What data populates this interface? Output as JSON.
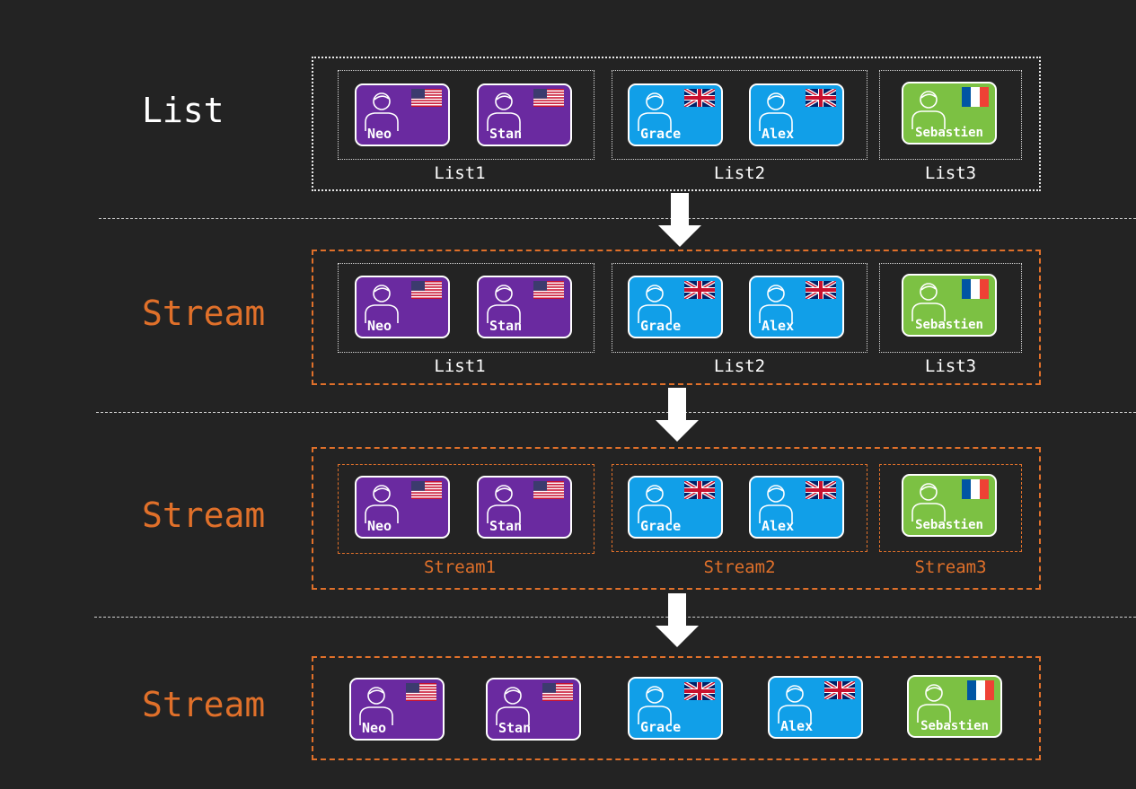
{
  "colors": {
    "background": "#232323",
    "white_text": "#ffffff",
    "orange": "#e0702a",
    "purple": "#6a2aa0",
    "blue": "#119fe8",
    "green": "#7cc143"
  },
  "rows": [
    {
      "label": "List",
      "groups": [
        {
          "label": "List1",
          "people": [
            {
              "name": "Neo",
              "country": "US",
              "color": "purple"
            },
            {
              "name": "Stan",
              "country": "US",
              "color": "purple"
            }
          ]
        },
        {
          "label": "List2",
          "people": [
            {
              "name": "Grace",
              "country": "UK",
              "color": "blue"
            },
            {
              "name": "Alex",
              "country": "UK",
              "color": "blue"
            }
          ]
        },
        {
          "label": "List3",
          "people": [
            {
              "name": "Sebastien",
              "country": "FR",
              "color": "green"
            }
          ]
        }
      ]
    },
    {
      "label": "Stream",
      "groups": [
        {
          "label": "List1",
          "people": [
            {
              "name": "Neo",
              "country": "US",
              "color": "purple"
            },
            {
              "name": "Stan",
              "country": "US",
              "color": "purple"
            }
          ]
        },
        {
          "label": "List2",
          "people": [
            {
              "name": "Grace",
              "country": "UK",
              "color": "blue"
            },
            {
              "name": "Alex",
              "country": "UK",
              "color": "blue"
            }
          ]
        },
        {
          "label": "List3",
          "people": [
            {
              "name": "Sebastien",
              "country": "FR",
              "color": "green"
            }
          ]
        }
      ]
    },
    {
      "label": "Stream",
      "groups": [
        {
          "label": "Stream1",
          "people": [
            {
              "name": "Neo",
              "country": "US",
              "color": "purple"
            },
            {
              "name": "Stan",
              "country": "US",
              "color": "purple"
            }
          ]
        },
        {
          "label": "Stream2",
          "people": [
            {
              "name": "Grace",
              "country": "UK",
              "color": "blue"
            },
            {
              "name": "Alex",
              "country": "UK",
              "color": "blue"
            }
          ]
        },
        {
          "label": "Stream3",
          "people": [
            {
              "name": "Sebastien",
              "country": "FR",
              "color": "green"
            }
          ]
        }
      ]
    },
    {
      "label": "Stream",
      "people": [
        {
          "name": "Neo",
          "country": "US",
          "color": "purple"
        },
        {
          "name": "Stan",
          "country": "US",
          "color": "purple"
        },
        {
          "name": "Grace",
          "country": "UK",
          "color": "blue"
        },
        {
          "name": "Alex",
          "country": "UK",
          "color": "blue"
        },
        {
          "name": "Sebastien",
          "country": "FR",
          "color": "green"
        }
      ]
    }
  ]
}
